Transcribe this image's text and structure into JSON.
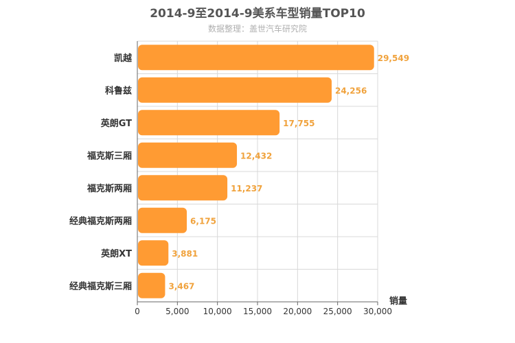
{
  "chart_data": {
    "type": "bar",
    "orientation": "horizontal",
    "title": "2014-9至2014-9美系车型销量TOP10",
    "subtitle": "数据整理：盖世汽车研究院",
    "categories": [
      "凯越",
      "科鲁兹",
      "英朗GT",
      "福克斯三厢",
      "福克斯两厢",
      "经典福克斯两厢",
      "英朗XT",
      "经典福克斯三厢"
    ],
    "series": [
      {
        "values": [
          29549,
          24256,
          17755,
          12432,
          11237,
          6175,
          3881,
          3467
        ]
      }
    ],
    "data_labels": [
      "29,549",
      "24,256",
      "17,755",
      "12,432",
      "11,237",
      "6,175",
      "3,881",
      "3,467"
    ],
    "x_ticks": [
      "0",
      "5,000",
      "10,000",
      "15,000",
      "20,000",
      "25,000",
      "30,000"
    ],
    "x_tick_values": [
      0,
      5000,
      10000,
      15000,
      20000,
      25000,
      30000
    ],
    "xlim": [
      0,
      30000
    ],
    "xlabel": "销量",
    "grid": true,
    "bar_color": "#ff9b33",
    "label_color": "#f0a23c"
  }
}
